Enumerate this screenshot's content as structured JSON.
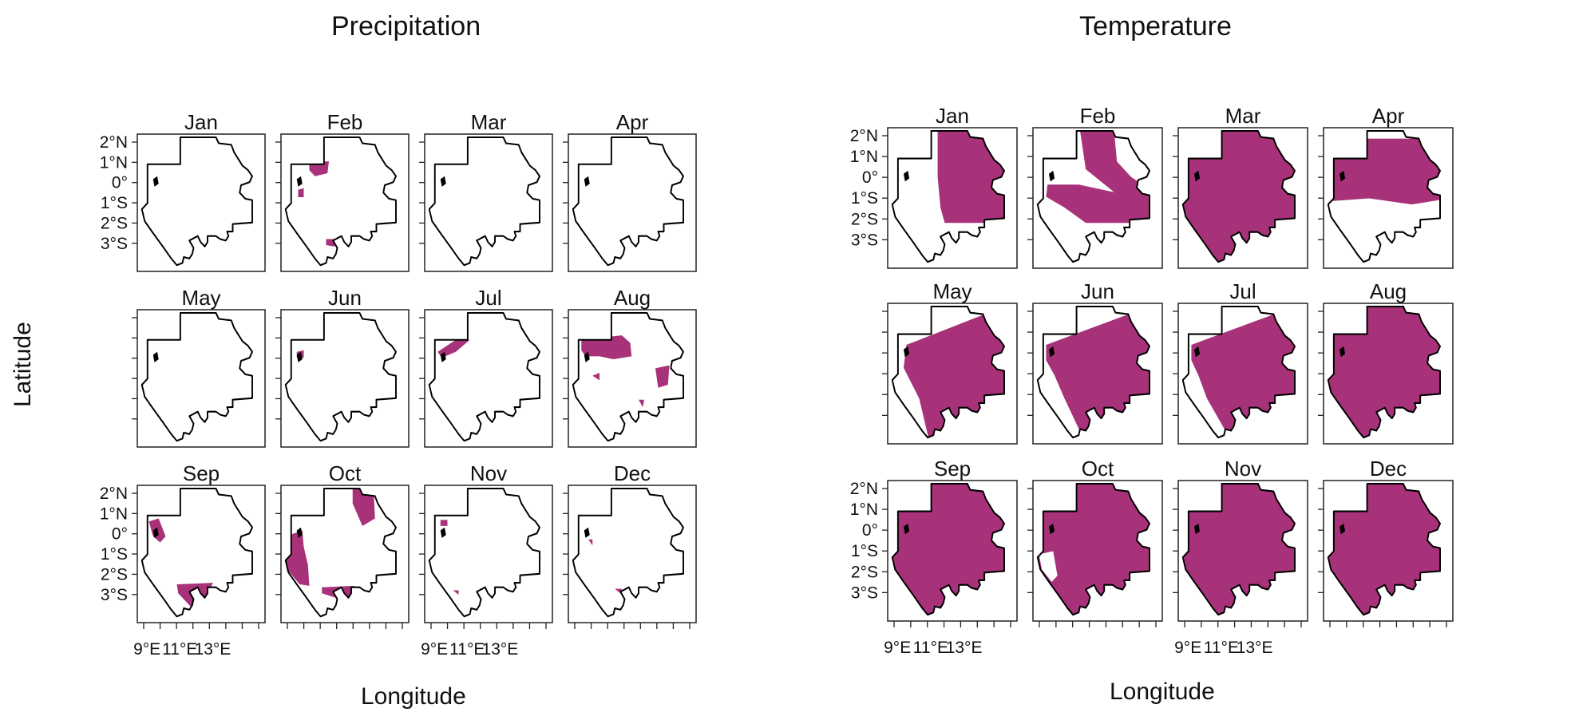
{
  "figure": {
    "left_group": {
      "title": "Precipitation",
      "xlabel": "Longitude",
      "ylabel": "Latitude",
      "months": [
        "Jan",
        "Feb",
        "Mar",
        "Apr",
        "May",
        "Jun",
        "Jul",
        "Aug",
        "Sep",
        "Oct",
        "Nov",
        "Dec"
      ],
      "lat_ticks": [
        "2°N",
        "1°N",
        "0°",
        "1°S",
        "2°S",
        "3°S"
      ],
      "lon_ticks": [
        "9°E",
        "11°E",
        "13°E"
      ]
    },
    "right_group": {
      "title": "Temperature",
      "xlabel": "Longitude",
      "months": [
        "Jan",
        "Feb",
        "Mar",
        "Apr",
        "May",
        "Jun",
        "Jul",
        "Aug",
        "Sep",
        "Oct",
        "Nov",
        "Dec"
      ],
      "lat_ticks": [
        "2°N",
        "1°N",
        "0°",
        "1°S",
        "2°S",
        "3°S"
      ],
      "lon_ticks": [
        "9°E",
        "11°E",
        "13°E"
      ]
    },
    "highlight_color": "#a8327a",
    "outline_color": "#000000",
    "map_region": "Gabon",
    "monthly_coverage": {
      "precipitation": {
        "Jan": "none",
        "Feb": "small patches north-west and south",
        "Mar": "none",
        "Apr": "none",
        "May": "none",
        "Jun": "tiny patch on coast",
        "Jul": "north-west corner",
        "Aug": "north band and scattered east",
        "Sep": "coastal patch and south band",
        "Oct": "north-east, coast and south",
        "Nov": "tiny patches",
        "Dec": "tiny patches"
      },
      "temperature": {
        "Jan": "eastern half",
        "Feb": "north-east and southern band",
        "Mar": "entire country",
        "Apr": "central band",
        "May": "most except south-west coast",
        "Jun": "most except south-west coast",
        "Jul": "most except south-west coast",
        "Aug": "entire country",
        "Sep": "entire country",
        "Oct": "most except coastal spot",
        "Nov": "entire country",
        "Dec": "entire country"
      }
    }
  }
}
